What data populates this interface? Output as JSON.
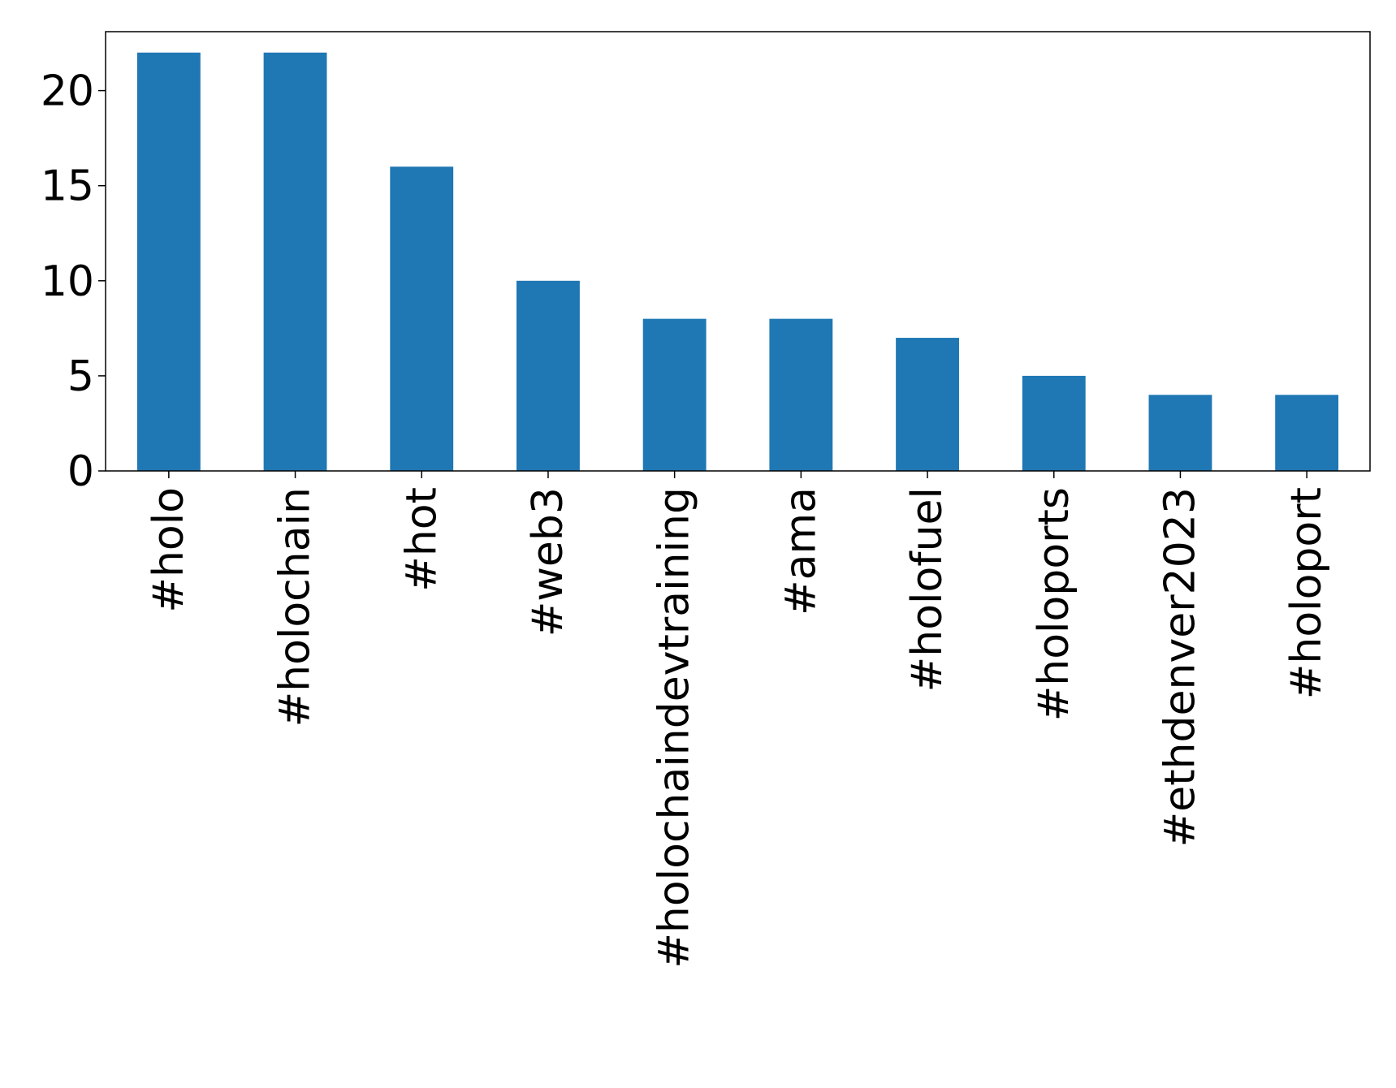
{
  "chart_data": {
    "type": "bar",
    "title": "",
    "xlabel": "",
    "ylabel": "",
    "categories": [
      "#holo",
      "#holochain",
      "#hot",
      "#web3",
      "#holochaindevtraining",
      "#ama",
      "#holofuel",
      "#holoports",
      "#ethdenver2023",
      "#holoport"
    ],
    "values": [
      22,
      22,
      16,
      10,
      8,
      8,
      7,
      5,
      4,
      4
    ],
    "ylim": [
      0,
      23.1
    ],
    "yticks": [
      0,
      5,
      10,
      15,
      20
    ],
    "grid": false,
    "legend": "none",
    "colors": {
      "bar": "#1f77b4",
      "axis": "#000000",
      "background": "#ffffff"
    }
  }
}
